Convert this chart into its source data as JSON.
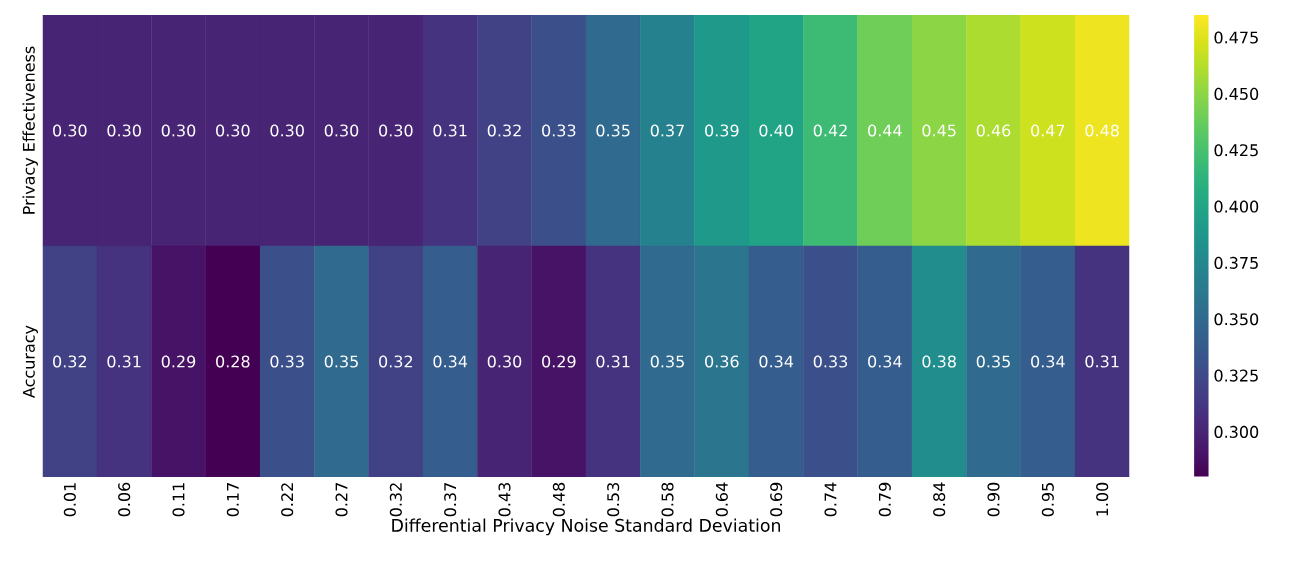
{
  "chart_data": {
    "type": "heatmap",
    "xlabel": "Differential Privacy Noise Standard Deviation",
    "categories": [
      "0.01",
      "0.06",
      "0.11",
      "0.17",
      "0.22",
      "0.27",
      "0.32",
      "0.37",
      "0.43",
      "0.48",
      "0.53",
      "0.58",
      "0.64",
      "0.69",
      "0.74",
      "0.79",
      "0.84",
      "0.90",
      "0.95",
      "1.00"
    ],
    "y_categories": [
      "Privacy Effectiveness",
      "Accuracy"
    ],
    "cells": [
      [
        0.3,
        0.3,
        0.3,
        0.3,
        0.3,
        0.3,
        0.3,
        0.31,
        0.32,
        0.33,
        0.35,
        0.37,
        0.39,
        0.4,
        0.42,
        0.44,
        0.45,
        0.46,
        0.47,
        0.48
      ],
      [
        0.32,
        0.31,
        0.29,
        0.28,
        0.33,
        0.35,
        0.32,
        0.34,
        0.3,
        0.29,
        0.31,
        0.35,
        0.36,
        0.34,
        0.33,
        0.34,
        0.38,
        0.35,
        0.34,
        0.31
      ]
    ],
    "cell_labels": [
      [
        "0.30",
        "0.30",
        "0.30",
        "0.30",
        "0.30",
        "0.30",
        "0.30",
        "0.31",
        "0.32",
        "0.33",
        "0.35",
        "0.37",
        "0.39",
        "0.40",
        "0.42",
        "0.44",
        "0.45",
        "0.46",
        "0.47",
        "0.48"
      ],
      [
        "0.32",
        "0.31",
        "0.29",
        "0.28",
        "0.33",
        "0.35",
        "0.32",
        "0.34",
        "0.30",
        "0.29",
        "0.31",
        "0.35",
        "0.36",
        "0.34",
        "0.33",
        "0.34",
        "0.38",
        "0.35",
        "0.34",
        "0.31"
      ]
    ],
    "clim": [
      0.28,
      0.485
    ],
    "cticks": [
      {
        "value": 0.3,
        "label": "0.300"
      },
      {
        "value": 0.325,
        "label": "0.325"
      },
      {
        "value": 0.35,
        "label": "0.350"
      },
      {
        "value": 0.375,
        "label": "0.375"
      },
      {
        "value": 0.4,
        "label": "0.400"
      },
      {
        "value": 0.425,
        "label": "0.425"
      },
      {
        "value": 0.45,
        "label": "0.450"
      },
      {
        "value": 0.475,
        "label": "0.475"
      }
    ]
  }
}
